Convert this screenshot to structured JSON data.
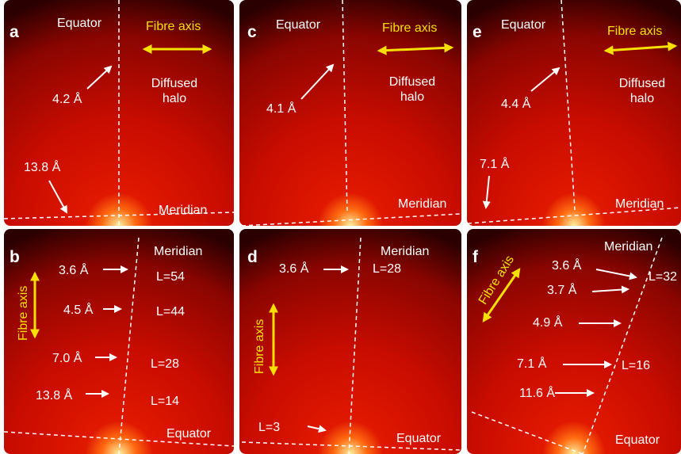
{
  "panels": [
    {
      "letter": "a",
      "labels": [
        "Equator",
        "Fibre axis",
        "4.2 Å",
        "Diffused halo",
        "13.8 Å",
        "Meridian"
      ]
    },
    {
      "letter": "b",
      "labels": [
        "Meridian",
        "3.6 Å",
        "L=54",
        "Fibre axis",
        "4.5 Å",
        "L=44",
        "7.0 Å",
        "L=28",
        "13.8 Å",
        "L=14",
        "Equator"
      ]
    },
    {
      "letter": "c",
      "labels": [
        "Equator",
        "Fibre axis",
        "4.1 Å",
        "Diffused halo",
        "Meridian"
      ]
    },
    {
      "letter": "d",
      "labels": [
        "3.6 Å",
        "Meridian",
        "L=28",
        "Fibre axis",
        "L=3",
        "Equator"
      ]
    },
    {
      "letter": "e",
      "labels": [
        "Equator",
        "Fibre axis",
        "4.4 Å",
        "Diffused halo",
        "7.1 Å",
        "Meridian"
      ]
    },
    {
      "letter": "f",
      "labels": [
        "Meridian",
        "3.6 Å",
        "L=32",
        "Fibre axis",
        "3.7 Å",
        "4.9 Å",
        "7.1 Å",
        "L=16",
        "11.6 Å",
        "Equator"
      ]
    }
  ]
}
